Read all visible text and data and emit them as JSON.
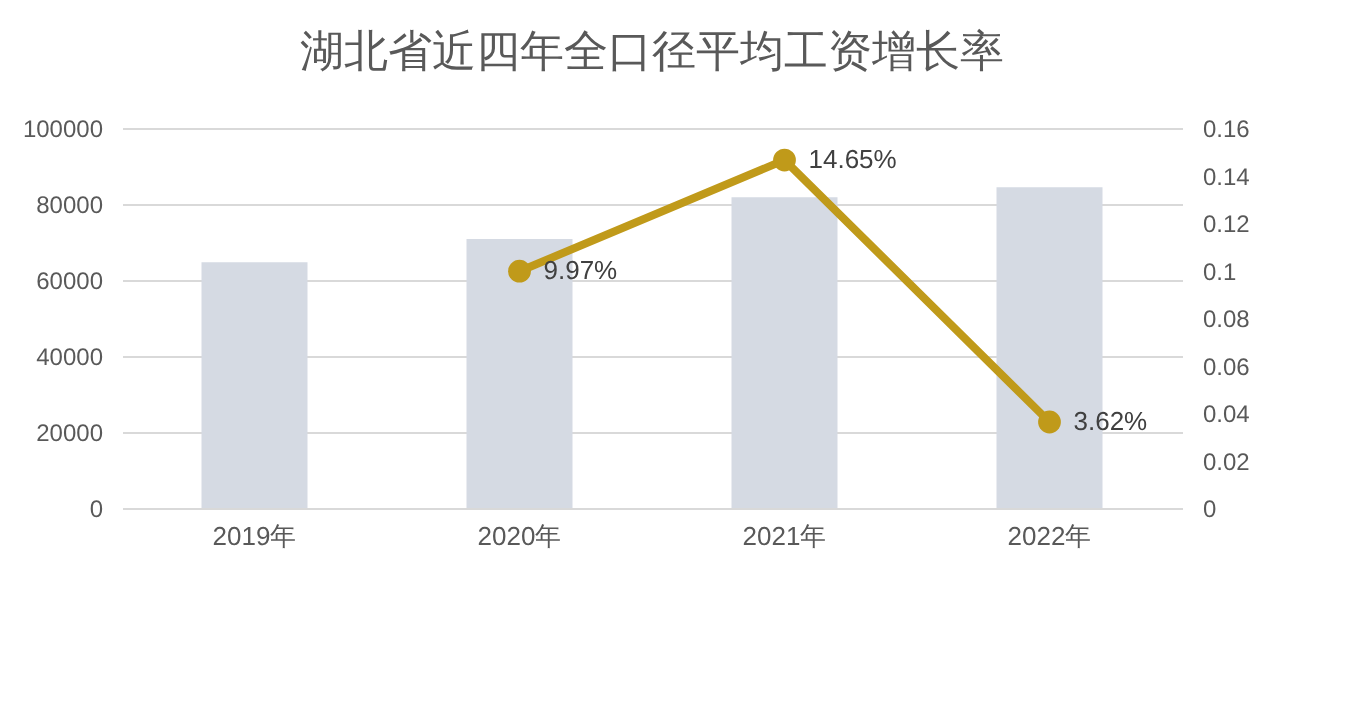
{
  "chart_data": {
    "type": "bar",
    "title": "湖北省近四年全口径平均工资增长率",
    "categories": [
      "2019年",
      "2020年",
      "2021年",
      "2022年"
    ],
    "series": [
      {
        "color": "#d5dae3",
        "values": [
          64700,
          70800,
          81800,
          84400
        ]
      },
      {
        "type": "line",
        "axis": "y2",
        "color": "#c09a1a",
        "values": [
          null,
          0.0997,
          0.1465,
          0.0362
        ],
        "value_labels": [
          null,
          "9.97%",
          "14.65%",
          "3.62%"
        ]
      }
    ],
    "ylim": [
      0,
      100000
    ],
    "yticks": [
      0,
      20000,
      40000,
      60000,
      80000,
      100000
    ],
    "y2lim": [
      0,
      0.16
    ],
    "y2ticks": [
      0,
      0.02,
      0.04,
      0.06,
      0.08,
      0.1,
      0.12,
      0.14,
      0.16
    ],
    "grid": "y",
    "marker": "circle",
    "line_style": "solid"
  }
}
